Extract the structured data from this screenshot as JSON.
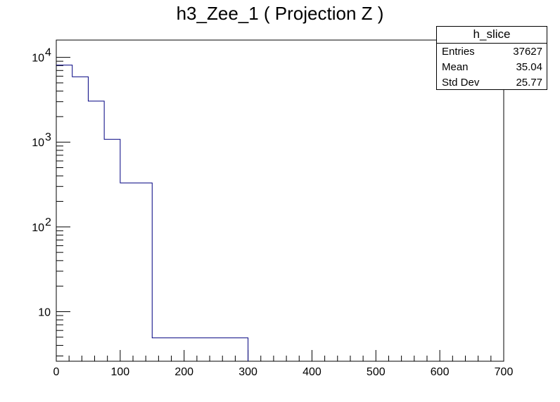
{
  "chart_data": {
    "type": "histogram",
    "title": "h3_Zee_1 ( Projection Z )",
    "xlabel": "",
    "ylabel": "",
    "xlim": [
      0,
      700
    ],
    "ylim": [
      2.6,
      16000
    ],
    "yscale": "log",
    "x_ticks": [
      0,
      100,
      200,
      300,
      400,
      500,
      600,
      700
    ],
    "y_ticks": [
      {
        "value": 10,
        "label": "10"
      },
      {
        "value": 100,
        "base": "10",
        "exp": "2"
      },
      {
        "value": 1000,
        "base": "10",
        "exp": "3"
      },
      {
        "value": 10000,
        "base": "10",
        "exp": "4"
      }
    ],
    "line_color": "#000080",
    "bins": [
      {
        "x0": 0,
        "x1": 25,
        "value": 8100
      },
      {
        "x0": 25,
        "x1": 50,
        "value": 5900
      },
      {
        "x0": 50,
        "x1": 75,
        "value": 3050
      },
      {
        "x0": 75,
        "x1": 100,
        "value": 1080
      },
      {
        "x0": 100,
        "x1": 150,
        "value": 330
      },
      {
        "x0": 150,
        "x1": 300,
        "value": 4.9
      },
      {
        "x0": 300,
        "x1": 700,
        "value": 0
      }
    ],
    "legend_position": "top-right",
    "stats": {
      "name": "h_slice",
      "rows": [
        {
          "label": "Entries",
          "value": "37627"
        },
        {
          "label": "Mean",
          "value": "35.04"
        },
        {
          "label": "Std Dev",
          "value": "25.77"
        }
      ]
    }
  }
}
